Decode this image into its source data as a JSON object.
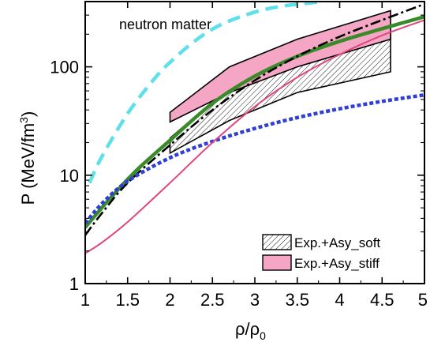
{
  "chart_data": {
    "type": "line",
    "annotation": "neutron matter",
    "xlabel": {
      "main": "ρ/ρ",
      "sub": "0"
    },
    "ylabel": {
      "main": "P (MeV/fm",
      "sup": "3",
      "close": ")"
    },
    "xlim": [
      1,
      5
    ],
    "ylim": [
      1,
      400
    ],
    "yscale": "log",
    "x_ticks": [
      "1",
      "1.5",
      "2",
      "2.5",
      "3",
      "3.5",
      "4",
      "4.5",
      "5"
    ],
    "y_ticks": [
      "1",
      "10",
      "100"
    ],
    "legend_placement": "bottom-right",
    "bands": [
      {
        "name": "Exp.+Asy_soft",
        "fill": "hatched",
        "color": "#000000",
        "x": [
          2.0,
          2.7,
          3.5,
          4.6
        ],
        "lower": [
          16,
          32,
          58,
          90
        ],
        "upper": [
          22,
          65,
          115,
          210
        ]
      },
      {
        "name": "Exp.+Asy_stiff",
        "fill": "#f4a6c4",
        "color": "#000000",
        "x": [
          2.0,
          2.7,
          3.5,
          4.6
        ],
        "lower": [
          31,
          58,
          100,
          180
        ],
        "upper": [
          38,
          100,
          180,
          330
        ]
      }
    ],
    "series": [
      {
        "style": "dashed",
        "color": "#5ee0ea",
        "x": [
          1.05,
          1.2,
          1.5,
          1.8,
          2.0,
          2.3,
          2.6,
          3.0,
          3.3,
          3.6,
          3.8
        ],
        "y": [
          8.5,
          15,
          37,
          75,
          110,
          175,
          245,
          320,
          360,
          385,
          400
        ]
      },
      {
        "style": "solid",
        "color": "#3a8a2a",
        "x": [
          1.0,
          1.3,
          1.6,
          2.0,
          2.5,
          3.0,
          3.5,
          4.0,
          4.5,
          5.0
        ],
        "y": [
          3.3,
          6.2,
          11,
          21,
          46,
          82,
          125,
          172,
          225,
          290
        ]
      },
      {
        "style": "dashdot",
        "color": "#000000",
        "x": [
          1.0,
          1.2,
          1.5,
          2.0,
          2.5,
          3.0,
          3.5,
          4.0,
          4.5,
          5.0
        ],
        "y": [
          2.8,
          4.5,
          8.5,
          19,
          40,
          75,
          125,
          190,
          270,
          380
        ]
      },
      {
        "style": "dotted",
        "color": "#2f3fd6",
        "x": [
          1.0,
          1.2,
          1.5,
          2.0,
          2.5,
          3.0,
          3.5,
          4.0,
          4.5,
          5.0
        ],
        "y": [
          3.6,
          5.5,
          8.8,
          14.5,
          20.5,
          27,
          34,
          41,
          48,
          55
        ]
      },
      {
        "style": "solid",
        "color": "#e0457f",
        "x": [
          1.0,
          1.2,
          1.5,
          2.0,
          2.5,
          3.0,
          3.5,
          4.0,
          4.5,
          5.0
        ],
        "y": [
          1.9,
          2.4,
          3.7,
          8.5,
          20,
          43,
          80,
          130,
          195,
          270
        ]
      }
    ]
  }
}
